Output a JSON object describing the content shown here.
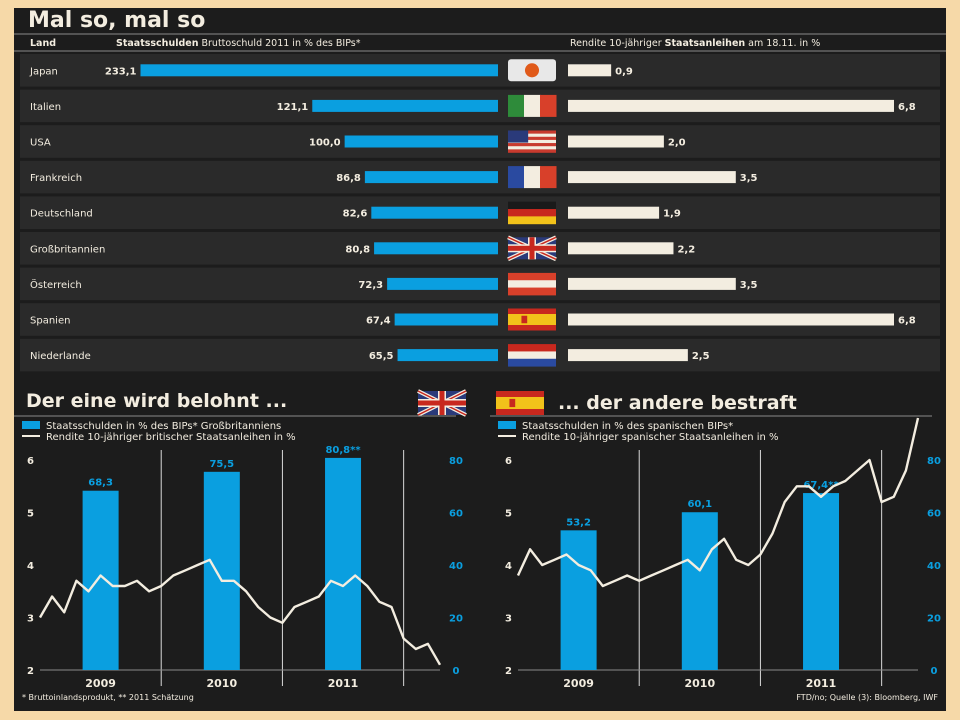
{
  "top": {
    "title": "Mal so, mal so",
    "col_land": "Land",
    "col_debt_bold": "Staatsschulden",
    "col_debt_rest": " Bruttoschuld 2011 in % des BIPs*",
    "col_yield_pre": "Rendite 10-jähriger ",
    "col_yield_bold": "Staatsanleihen",
    "col_yield_post": " am 18.11. in %"
  },
  "left_panel": {
    "title": "Der eine wird belohnt ...",
    "legend_bar": "Staatsschulden in % des BIPs* Großbritanniens",
    "legend_line": "Rendite 10-jähriger britischer Staatsanleihen in %",
    "footnote": "* Bruttoinlandsprodukt, ** 2011 Schätzung"
  },
  "right_panel": {
    "title": "... der andere bestraft",
    "legend_bar": "Staatsschulden in % des spanischen BIPs*",
    "legend_line": "Rendite 10-jähriger spanischer Staatsanleihen in %",
    "source": "FTD/no; Quelle (3): Bloomberg, IWF"
  },
  "colors": {
    "bar": "#0a9fe0",
    "cream": "#f3ede0",
    "frame": "#1c1c1c",
    "row_dark": "#2a2a2a",
    "bg": "#f6d9a8"
  },
  "chart_data": [
    {
      "type": "bar",
      "title": "Mal so, mal so",
      "categories": [
        "Japan",
        "Italien",
        "USA",
        "Frankreich",
        "Deutschland",
        "Großbritannien",
        "Österreich",
        "Spanien",
        "Niederlande"
      ],
      "series": [
        {
          "name": "Staatsschulden Bruttoschuld 2011 in % des BIPs*",
          "values": [
            233.1,
            121.1,
            100.0,
            86.8,
            82.6,
            80.8,
            72.3,
            67.4,
            65.5
          ],
          "labels": [
            "233,1",
            "121,1",
            "100,0",
            "86,8",
            "82,6",
            "80,8",
            "72,3",
            "67,4",
            "65,5"
          ]
        },
        {
          "name": "Rendite 10-jähriger Staatsanleihen am 18.11. in %",
          "values": [
            0.9,
            6.8,
            2.0,
            3.5,
            1.9,
            2.2,
            3.5,
            6.8,
            2.5
          ],
          "labels": [
            "0,9",
            "6,8",
            "2,0",
            "3,5",
            "1,9",
            "2,2",
            "3,5",
            "6,8",
            "2,5"
          ]
        }
      ]
    },
    {
      "type": "bar+line",
      "title": "Der eine wird belohnt ...",
      "x_ticks": [
        "2009",
        "2010",
        "2011"
      ],
      "y_left_ticks": [
        "6",
        "5",
        "4",
        "3",
        "2"
      ],
      "y_right_ticks": [
        "80",
        "60",
        "40",
        "20",
        "0"
      ],
      "y_left_range": [
        2,
        6
      ],
      "y_right_range": [
        0,
        80
      ],
      "x_range": [
        2008.5,
        2011.8
      ],
      "bars": {
        "name": "Staatsschulden in % des BIPs* Großbritanniens",
        "x": [
          2009,
          2010,
          2011
        ],
        "values": [
          68.3,
          75.5,
          80.8
        ],
        "labels": [
          "68,3",
          "75,5",
          "80,8**"
        ]
      },
      "line": {
        "name": "Rendite 10-jähriger britischer Staatsanleihen in %",
        "x": [
          2008.5,
          2008.6,
          2008.7,
          2008.8,
          2008.9,
          2009.0,
          2009.1,
          2009.2,
          2009.3,
          2009.4,
          2009.5,
          2009.6,
          2009.7,
          2009.8,
          2009.9,
          2010.0,
          2010.1,
          2010.2,
          2010.3,
          2010.4,
          2010.5,
          2010.6,
          2010.7,
          2010.8,
          2010.9,
          2011.0,
          2011.1,
          2011.2,
          2011.3,
          2011.4,
          2011.5,
          2011.6,
          2011.7,
          2011.8
        ],
        "values": [
          3.0,
          3.4,
          3.1,
          3.7,
          3.5,
          3.8,
          3.6,
          3.6,
          3.7,
          3.5,
          3.6,
          3.8,
          3.9,
          4.0,
          4.1,
          3.7,
          3.7,
          3.5,
          3.2,
          3.0,
          2.9,
          3.2,
          3.3,
          3.4,
          3.7,
          3.6,
          3.8,
          3.6,
          3.3,
          3.2,
          2.6,
          2.4,
          2.5,
          2.1
        ]
      }
    },
    {
      "type": "bar+line",
      "title": "... der andere bestraft",
      "x_ticks": [
        "2009",
        "2010",
        "2011"
      ],
      "y_left_ticks": [
        "6",
        "5",
        "4",
        "3",
        "2"
      ],
      "y_right_ticks": [
        "80",
        "60",
        "40",
        "20",
        "0"
      ],
      "y_left_range": [
        2,
        6
      ],
      "y_right_range": [
        0,
        80
      ],
      "x_range": [
        2008.5,
        2011.8
      ],
      "bars": {
        "name": "Staatsschulden in % des spanischen BIPs*",
        "x": [
          2009,
          2010,
          2011
        ],
        "values": [
          53.2,
          60.1,
          67.4
        ],
        "labels": [
          "53,2",
          "60,1",
          "67,4**"
        ]
      },
      "line": {
        "name": "Rendite 10-jähriger spanischer Staatsanleihen in %",
        "x": [
          2008.5,
          2008.6,
          2008.7,
          2008.8,
          2008.9,
          2009.0,
          2009.1,
          2009.2,
          2009.3,
          2009.4,
          2009.5,
          2009.6,
          2009.7,
          2009.8,
          2009.9,
          2010.0,
          2010.1,
          2010.2,
          2010.3,
          2010.4,
          2010.5,
          2010.6,
          2010.7,
          2010.8,
          2010.9,
          2011.0,
          2011.1,
          2011.2,
          2011.3,
          2011.4,
          2011.5,
          2011.6,
          2011.7,
          2011.8
        ],
        "values": [
          3.8,
          4.3,
          4.0,
          4.1,
          4.2,
          4.0,
          3.9,
          3.6,
          3.7,
          3.8,
          3.7,
          3.8,
          3.9,
          4.0,
          4.1,
          3.9,
          4.3,
          4.5,
          4.1,
          4.0,
          4.2,
          4.6,
          5.2,
          5.5,
          5.5,
          5.3,
          5.5,
          5.6,
          5.8,
          6.0,
          5.2,
          5.3,
          5.8,
          6.8
        ]
      }
    }
  ]
}
